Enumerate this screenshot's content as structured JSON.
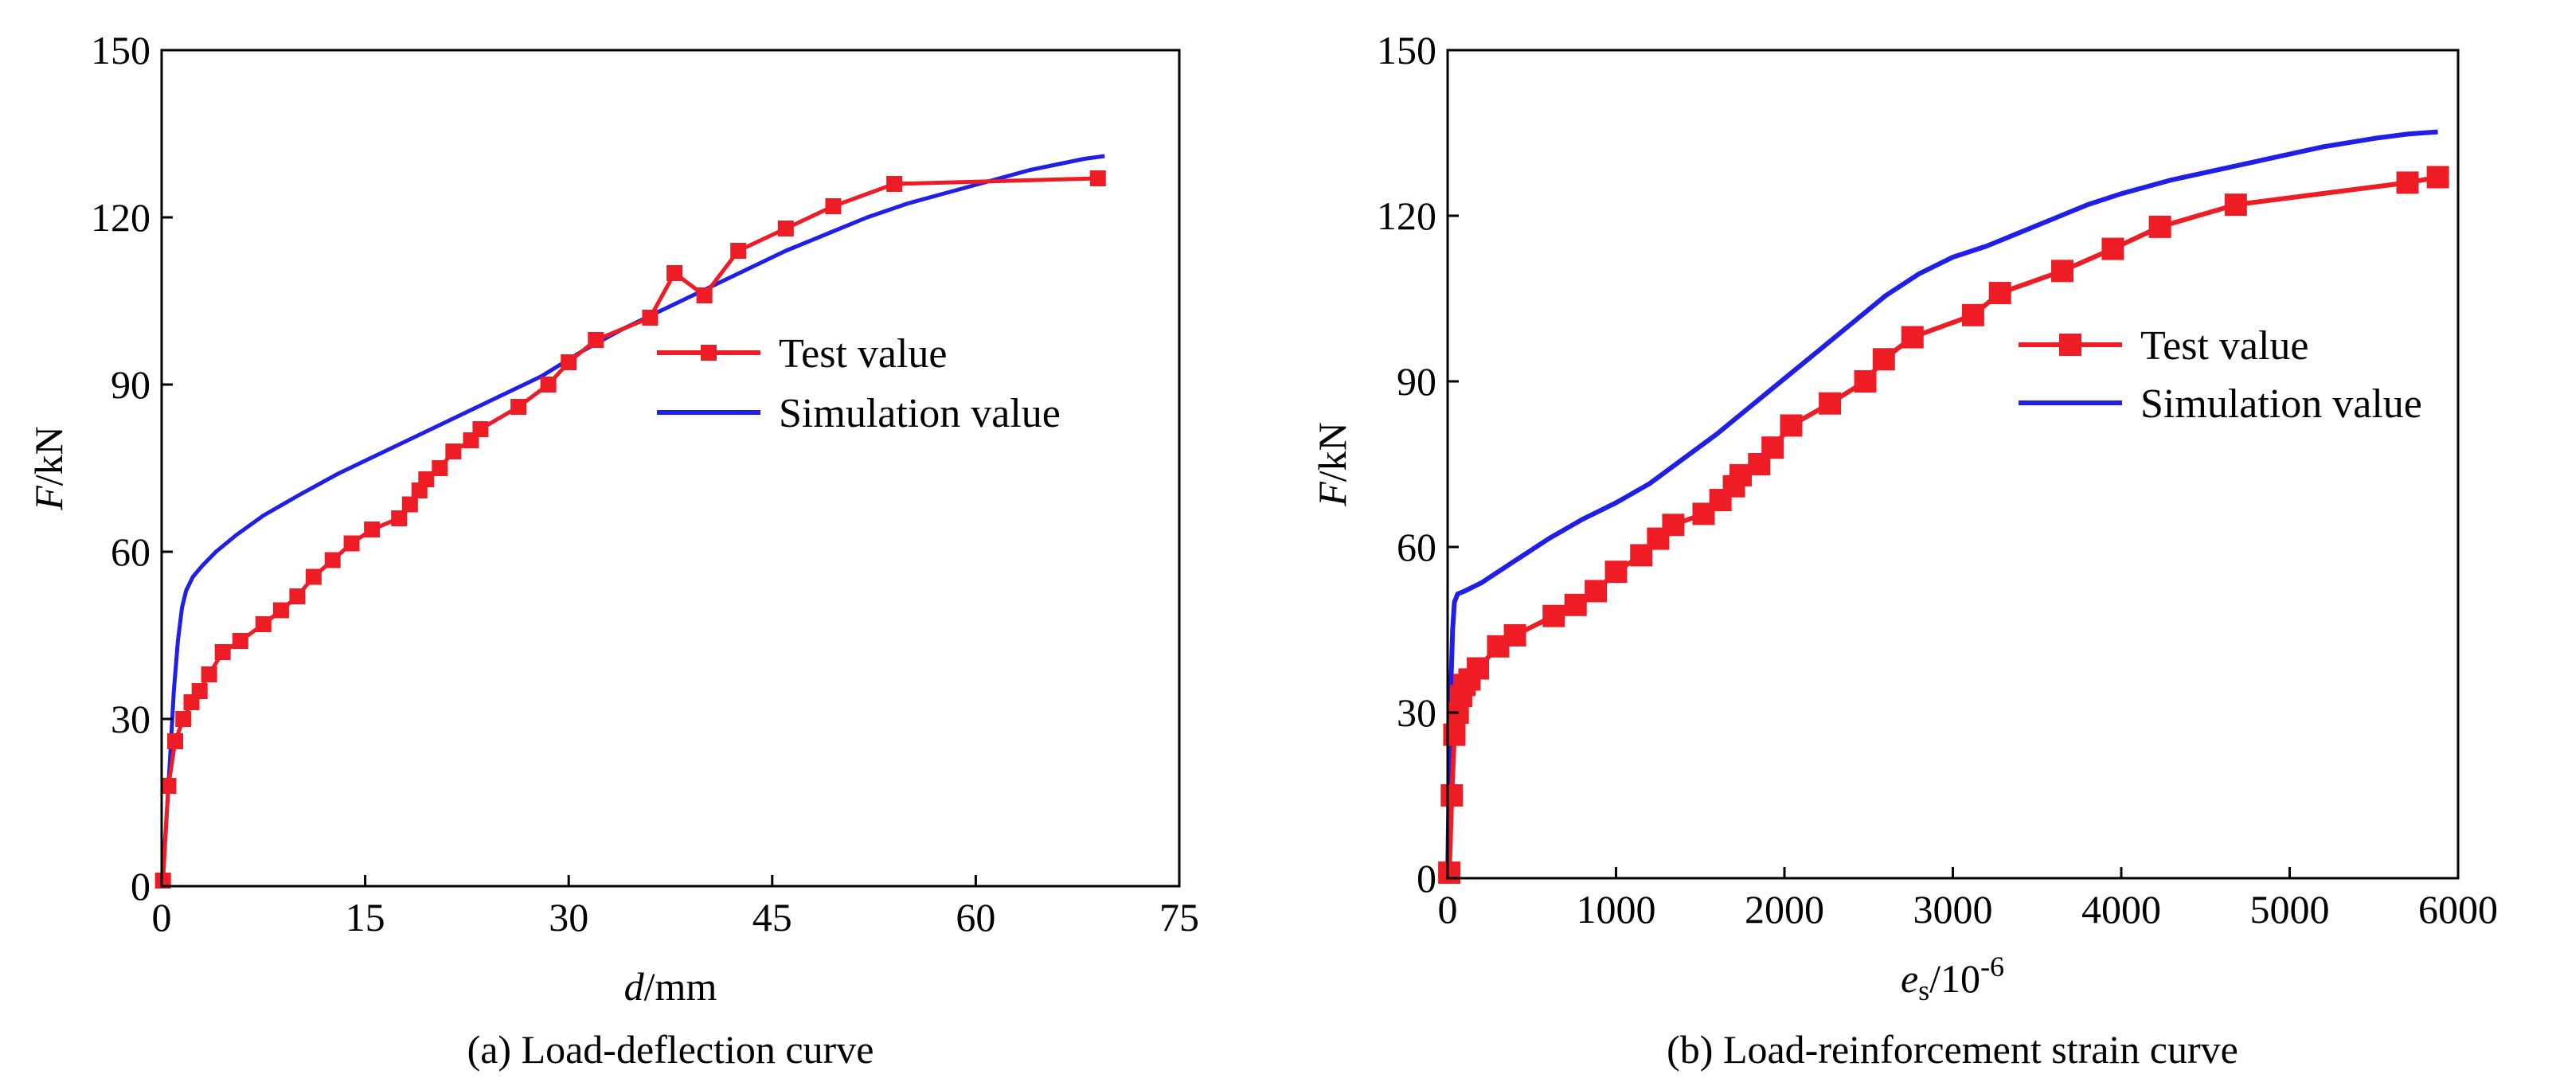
{
  "chart_data": [
    {
      "id": "a",
      "type": "line",
      "caption": "(a) Load-deflection curve",
      "xlabel": {
        "symbol": "d",
        "unit": "/mm"
      },
      "ylabel": {
        "symbol": "F",
        "unit": "/kN"
      },
      "xlim": [
        0,
        75
      ],
      "ylim": [
        0,
        150
      ],
      "xticks": [
        0,
        15,
        30,
        45,
        60,
        75
      ],
      "yticks": [
        0,
        30,
        60,
        90,
        120,
        150
      ],
      "legend_position": "center-right",
      "series": [
        {
          "name": "Test value",
          "color": "#ee1c25",
          "marker": "square",
          "x": [
            0.1,
            0.5,
            1.0,
            1.6,
            2.2,
            2.8,
            3.5,
            4.5,
            5.8,
            7.5,
            8.8,
            10,
            11.2,
            12.6,
            14,
            15.5,
            17.5,
            18.3,
            19,
            19.5,
            20.5,
            21.5,
            22.8,
            23.5,
            26.3,
            28.5,
            30,
            32,
            36,
            37.8,
            40,
            42.5,
            46,
            49.5,
            54,
            69
          ],
          "y": [
            1,
            18,
            26,
            30,
            33,
            35,
            38,
            42,
            44,
            47,
            49.5,
            52,
            55.5,
            58.5,
            61.5,
            64,
            66,
            68.5,
            71,
            73,
            75,
            78,
            80,
            82,
            86,
            90,
            94,
            98,
            102,
            110,
            106,
            114,
            118,
            122,
            126,
            127
          ]
        },
        {
          "name": "Simulation value",
          "color": "#1f1fe8",
          "marker": "none",
          "x": [
            0,
            0.3,
            0.6,
            0.9,
            1.2,
            1.5,
            1.8,
            2.3,
            3,
            4,
            5.5,
            7.5,
            10,
            13,
            16,
            19,
            22,
            25,
            28,
            31,
            34,
            37,
            40,
            43,
            46,
            49,
            52,
            55,
            58,
            61,
            64,
            66,
            68,
            69.5
          ],
          "y": [
            0,
            10,
            22,
            35,
            44,
            50,
            53,
            55.5,
            57.5,
            60,
            63,
            66.5,
            70,
            74,
            77.5,
            81,
            84.5,
            88,
            91.5,
            96,
            100,
            103.5,
            107,
            110.5,
            114,
            117,
            120,
            122.5,
            124.5,
            126.5,
            128.5,
            129.5,
            130.5,
            131
          ]
        }
      ]
    },
    {
      "id": "b",
      "type": "line",
      "caption": "(b) Load-reinforcement strain curve",
      "xlabel": {
        "symbol": "e",
        "subscript": "s",
        "unit": "/10",
        "superscript": "-6"
      },
      "ylabel": {
        "symbol": "F",
        "unit": "/kN"
      },
      "xlim": [
        0,
        6000
      ],
      "ylim": [
        0,
        150
      ],
      "xticks": [
        0,
        1000,
        2000,
        3000,
        4000,
        5000,
        6000
      ],
      "yticks": [
        0,
        30,
        60,
        90,
        120,
        150
      ],
      "legend_position": "center-right",
      "series": [
        {
          "name": "Test value",
          "color": "#ee1c25",
          "marker": "square",
          "x": [
            10,
            25,
            40,
            60,
            80,
            100,
            130,
            180,
            300,
            400,
            630,
            760,
            880,
            1000,
            1150,
            1250,
            1340,
            1520,
            1620,
            1700,
            1740,
            1850,
            1930,
            2040,
            2270,
            2480,
            2590,
            2760,
            3120,
            3280,
            3650,
            3950,
            4230,
            4680,
            5700,
            5880
          ],
          "y": [
            1,
            15,
            26,
            30,
            33,
            35,
            36,
            38,
            42,
            44,
            47.5,
            49.5,
            52,
            55.5,
            58.5,
            61.5,
            64,
            66,
            68.5,
            71,
            73,
            75,
            78,
            82,
            86,
            90,
            94,
            98,
            102,
            106,
            110,
            114,
            118,
            122,
            126,
            127
          ]
        },
        {
          "name": "Simulation value",
          "color": "#1f1fe8",
          "marker": "none",
          "x": [
            0,
            10,
            20,
            30,
            40,
            60,
            100,
            200,
            400,
            600,
            800,
            1000,
            1200,
            1400,
            1600,
            1800,
            2000,
            2200,
            2400,
            2600,
            2800,
            3000,
            3200,
            3400,
            3600,
            3800,
            4000,
            4300,
            4600,
            4900,
            5200,
            5500,
            5700,
            5880
          ],
          "y": [
            0,
            20,
            35,
            45,
            50,
            51.5,
            52,
            53.5,
            57.5,
            61.5,
            65,
            68,
            71.5,
            76,
            80.5,
            85.5,
            90.5,
            95.5,
            100.5,
            105.5,
            109.5,
            112.5,
            114.5,
            117,
            119.5,
            122,
            124,
            126.5,
            128.5,
            130.5,
            132.5,
            134,
            134.8,
            135.2
          ]
        }
      ]
    }
  ]
}
